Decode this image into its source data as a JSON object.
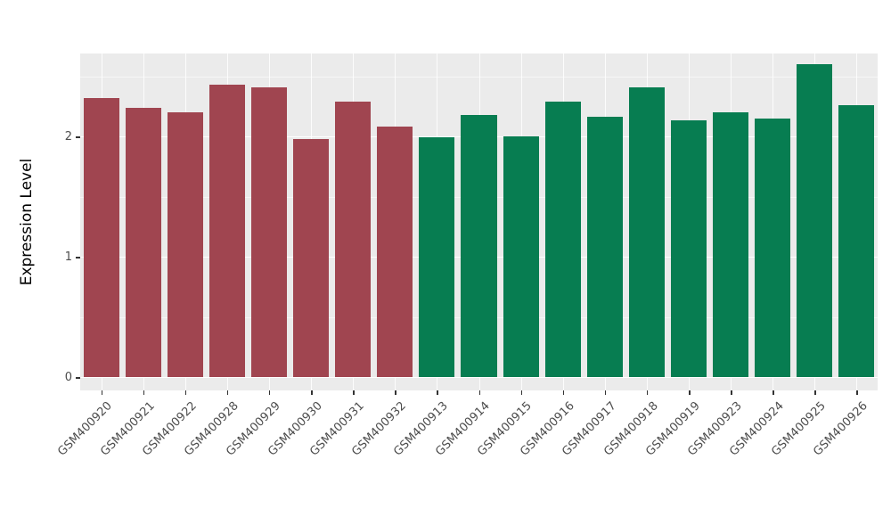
{
  "chart_data": {
    "type": "bar",
    "title": "",
    "xlabel": "",
    "ylabel": "Expression Level",
    "ylim": [
      0,
      2.69
    ],
    "y_ticks": [
      0,
      1,
      2
    ],
    "y_tick_labels": [
      "0",
      "1",
      "2"
    ],
    "y_minor_ticks": [
      0.5,
      1.5,
      2.5
    ],
    "grid": true,
    "legend": "none",
    "categories": [
      "GSM400920",
      "GSM400921",
      "GSM400922",
      "GSM400928",
      "GSM400929",
      "GSM400930",
      "GSM400931",
      "GSM400932",
      "GSM400913",
      "GSM400914",
      "GSM400915",
      "GSM400916",
      "GSM400917",
      "GSM400918",
      "GSM400919",
      "GSM400923",
      "GSM400924",
      "GSM400925",
      "GSM400926"
    ],
    "values": [
      2.32,
      2.24,
      2.2,
      2.43,
      2.41,
      1.98,
      2.29,
      2.08,
      1.99,
      2.18,
      2.0,
      2.29,
      2.16,
      2.41,
      2.13,
      2.2,
      2.15,
      2.6,
      2.26
    ],
    "groups": [
      "red",
      "red",
      "red",
      "red",
      "red",
      "red",
      "red",
      "red",
      "green",
      "green",
      "green",
      "green",
      "green",
      "green",
      "green",
      "green",
      "green",
      "green",
      "green"
    ],
    "group_colors": {
      "red": "#A04550",
      "green": "#077D51"
    },
    "panel_background": "#EBEBEB",
    "grid_major_color": "#FFFFFF",
    "tick_label_color": "#4D4D4D"
  }
}
